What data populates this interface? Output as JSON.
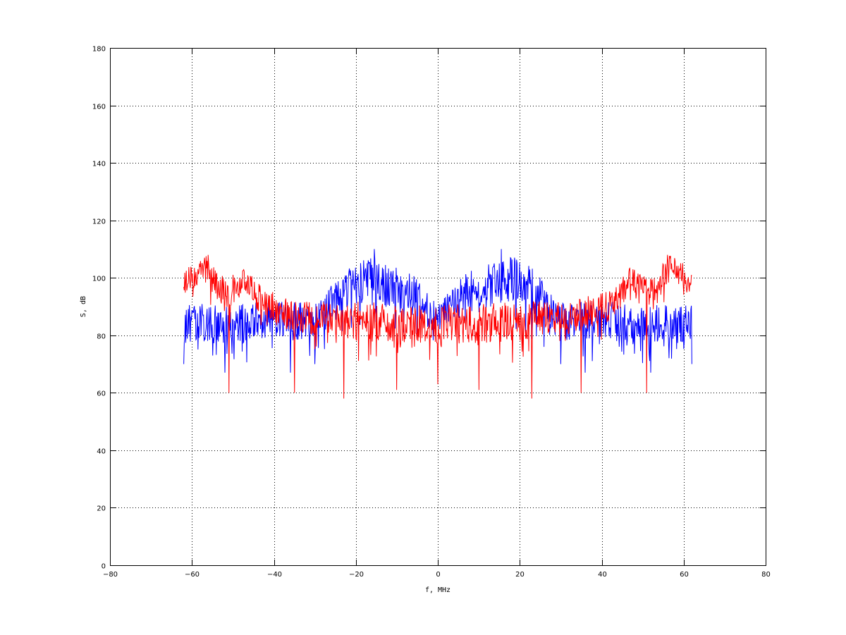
{
  "chart_data": {
    "type": "line",
    "title": "",
    "xlabel": "f, MHz",
    "ylabel": "S, dB",
    "xlim": [
      -80,
      80
    ],
    "ylim": [
      0,
      180
    ],
    "x_ticks": [
      -80,
      -60,
      -40,
      -20,
      0,
      20,
      40,
      60,
      80
    ],
    "y_ticks": [
      0,
      20,
      40,
      60,
      80,
      100,
      120,
      140,
      160,
      180
    ],
    "x_tick_labels": [
      "−80",
      "−60",
      "−40",
      "−20",
      "0",
      "20",
      "40",
      "60",
      "80"
    ],
    "y_tick_labels": [
      "0",
      "20",
      "40",
      "60",
      "80",
      "100",
      "120",
      "140",
      "160",
      "180"
    ],
    "grid": true,
    "legend": "none",
    "series": [
      {
        "color": "#0000ff",
        "style": "noisy spectrum",
        "x_range": [
          -62,
          62
        ],
        "envelope": {
          "x": [
            -62,
            -50,
            -40,
            -30,
            -27,
            -24,
            -20,
            -15,
            -10,
            -5,
            -2,
            0,
            2,
            5,
            10,
            15,
            20,
            24,
            27,
            30,
            40,
            50,
            62
          ],
          "center": [
            84,
            84,
            85,
            85,
            89,
            94,
            99,
            99,
            96,
            93,
            88,
            87,
            88,
            93,
            96,
            99,
            99,
            94,
            89,
            85,
            85,
            84,
            84
          ],
          "spread": [
            6,
            6,
            6,
            6,
            6,
            7,
            7,
            7,
            7,
            6,
            5,
            5,
            5,
            6,
            7,
            7,
            7,
            7,
            6,
            6,
            6,
            6,
            6
          ]
        },
        "peaks": [
          110,
          110
        ],
        "dips": [
          [
            -52,
            67
          ],
          [
            -36,
            67
          ],
          [
            -30,
            70
          ],
          [
            30,
            70
          ],
          [
            36,
            67
          ],
          [
            52,
            67
          ],
          [
            -62,
            70
          ],
          [
            62,
            70
          ]
        ]
      },
      {
        "color": "#ff0000",
        "style": "noisy spectrum",
        "x_range": [
          -62,
          62
        ],
        "envelope": {
          "x": [
            -62,
            -57,
            -52,
            -47,
            -42,
            -37,
            -32,
            -27,
            -20,
            -10,
            0,
            10,
            20,
            27,
            32,
            37,
            42,
            47,
            52,
            57,
            62
          ],
          "center": [
            98,
            104,
            94,
            99,
            90,
            88,
            86,
            86,
            85,
            84,
            84,
            84,
            85,
            86,
            86,
            88,
            90,
            99,
            94,
            104,
            98
          ],
          "spread": [
            4,
            4,
            5,
            4,
            5,
            5,
            5,
            5,
            6,
            6,
            6,
            6,
            6,
            5,
            5,
            5,
            5,
            4,
            5,
            4,
            4
          ]
        },
        "peaks": [
          108,
          108
        ],
        "dips": [
          [
            -51,
            60
          ],
          [
            -35,
            60
          ],
          [
            -23,
            58
          ],
          [
            -10,
            61
          ],
          [
            0,
            63
          ],
          [
            10,
            61
          ],
          [
            23,
            58
          ],
          [
            35,
            60
          ],
          [
            51,
            60
          ]
        ]
      }
    ]
  }
}
